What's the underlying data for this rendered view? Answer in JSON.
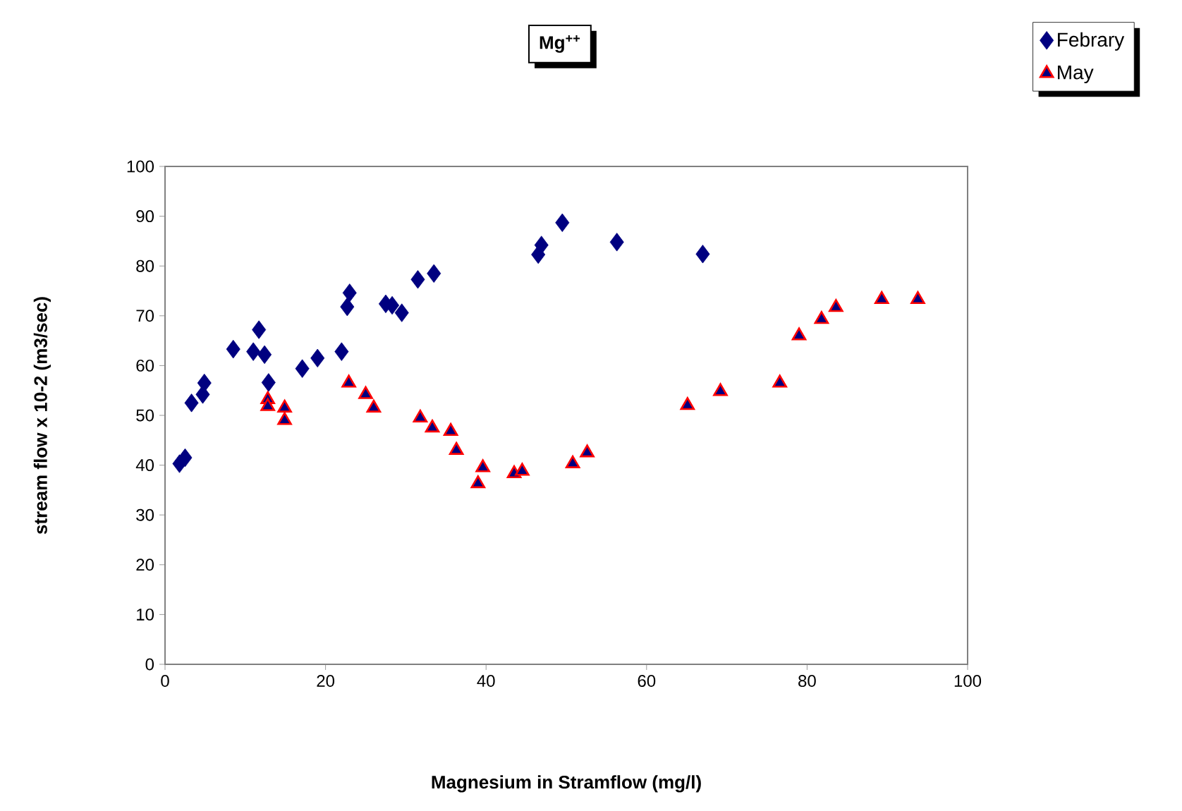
{
  "chart_data": {
    "type": "scatter",
    "title": "Mg$^{++}$",
    "xlabel": "Magnesium in Stramflow (mg/l)",
    "ylabel": "stream flow x 10-2 (m3/sec)",
    "xlim": [
      0,
      100
    ],
    "xticks": [
      0,
      20,
      40,
      60,
      80,
      100
    ],
    "ylim": [
      0,
      100
    ],
    "yticks": [
      0,
      10,
      20,
      30,
      40,
      50,
      60,
      70,
      80,
      90,
      100
    ],
    "grid": false,
    "legend": "top right",
    "series": [
      {
        "name": "Febrary",
        "color": "#000080",
        "marker": "diamond",
        "x": [
          1.8,
          2.5,
          3.3,
          4.3,
          4.7,
          4.9,
          8.5,
          11,
          11.7,
          12.4,
          12.9,
          17.1,
          19,
          22,
          22.7,
          23,
          27.5,
          28.3,
          29.5,
          31.5,
          33.5,
          46.5,
          46.9,
          49.5,
          56.3,
          67
        ],
        "values": [
          40.3,
          41.5,
          52.5,
          null,
          54.2,
          56.5,
          63.3,
          62.8,
          67.2,
          62.2,
          56.6,
          59.4,
          61.5,
          62.8,
          71.8,
          74.6,
          72.4,
          72.1,
          70.6,
          77.3,
          78.5,
          82.3,
          84.2,
          88.7,
          84.8,
          82.4
        ]
      },
      {
        "name": "May",
        "color": "#ff0000",
        "marker": "triangle",
        "x": [
          12.8,
          12.8,
          14.9,
          14.9,
          22.9,
          25,
          26,
          31.8,
          33.3,
          35.6,
          36.3,
          39,
          39.6,
          43.5,
          44.5,
          50.8,
          52.6,
          65.1,
          69.2,
          76.6,
          79,
          81.8,
          83.6,
          89.3,
          93.8
        ],
        "values": [
          53.2,
          51.8,
          51.5,
          49,
          56.5,
          54.2,
          51.5,
          49.5,
          47.5,
          46.8,
          43,
          36.3,
          39.5,
          38.3,
          38.8,
          40.3,
          42.5,
          52,
          54.8,
          56.5,
          66,
          69.3,
          71.7,
          73.3,
          73.3
        ]
      }
    ]
  }
}
